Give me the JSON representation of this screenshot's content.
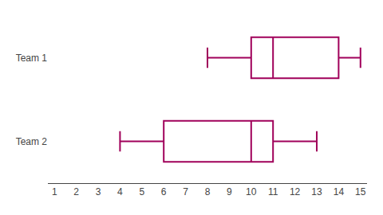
{
  "chart_data": {
    "type": "box",
    "orientation": "horizontal",
    "categories": [
      "Team 1",
      "Team 2"
    ],
    "min": [
      8,
      4
    ],
    "q1": [
      10,
      6
    ],
    "median": [
      11,
      10
    ],
    "q3": [
      14,
      11
    ],
    "max": [
      15,
      13
    ],
    "color": "#A0005A",
    "xlim": [
      0.7,
      15.3
    ],
    "xticks": [
      1,
      2,
      3,
      4,
      5,
      6,
      7,
      8,
      9,
      10,
      11,
      12,
      13,
      14,
      15
    ],
    "grid": false,
    "tick_labels": true
  }
}
